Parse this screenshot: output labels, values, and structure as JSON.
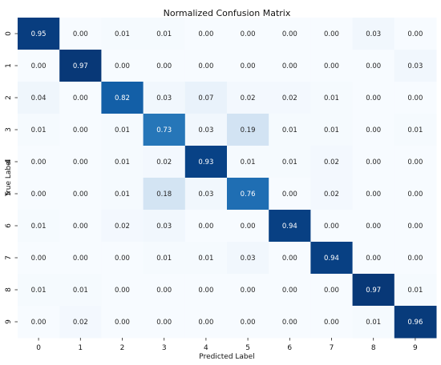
{
  "chart_data": {
    "type": "heatmap",
    "title": "Normalized Confusion Matrix",
    "xlabel": "Predicted Label",
    "ylabel": "True Label",
    "x_categories": [
      "0",
      "1",
      "2",
      "3",
      "4",
      "5",
      "6",
      "7",
      "8",
      "9"
    ],
    "y_categories": [
      "0",
      "1",
      "2",
      "3",
      "4",
      "5",
      "6",
      "7",
      "8",
      "9"
    ],
    "value_range": [
      0,
      1
    ],
    "colormap": "Blues",
    "values": [
      [
        0.95,
        0.0,
        0.01,
        0.01,
        0.0,
        0.0,
        0.0,
        0.0,
        0.03,
        0.0
      ],
      [
        0.0,
        0.97,
        0.0,
        0.0,
        0.0,
        0.0,
        0.0,
        0.0,
        0.0,
        0.03
      ],
      [
        0.04,
        0.0,
        0.82,
        0.03,
        0.07,
        0.02,
        0.02,
        0.01,
        0.0,
        0.0
      ],
      [
        0.01,
        0.0,
        0.01,
        0.73,
        0.03,
        0.19,
        0.01,
        0.01,
        0.0,
        0.01
      ],
      [
        0.0,
        0.0,
        0.01,
        0.02,
        0.93,
        0.01,
        0.01,
        0.02,
        0.0,
        0.0
      ],
      [
        0.0,
        0.0,
        0.01,
        0.18,
        0.03,
        0.76,
        0.0,
        0.02,
        0.0,
        0.0
      ],
      [
        0.01,
        0.0,
        0.02,
        0.03,
        0.0,
        0.0,
        0.94,
        0.0,
        0.0,
        0.0
      ],
      [
        0.0,
        0.0,
        0.0,
        0.01,
        0.01,
        0.03,
        0.0,
        0.94,
        0.0,
        0.0
      ],
      [
        0.01,
        0.01,
        0.0,
        0.0,
        0.0,
        0.0,
        0.0,
        0.0,
        0.97,
        0.01
      ],
      [
        0.0,
        0.02,
        0.0,
        0.0,
        0.0,
        0.0,
        0.0,
        0.0,
        0.01,
        0.96
      ]
    ]
  }
}
